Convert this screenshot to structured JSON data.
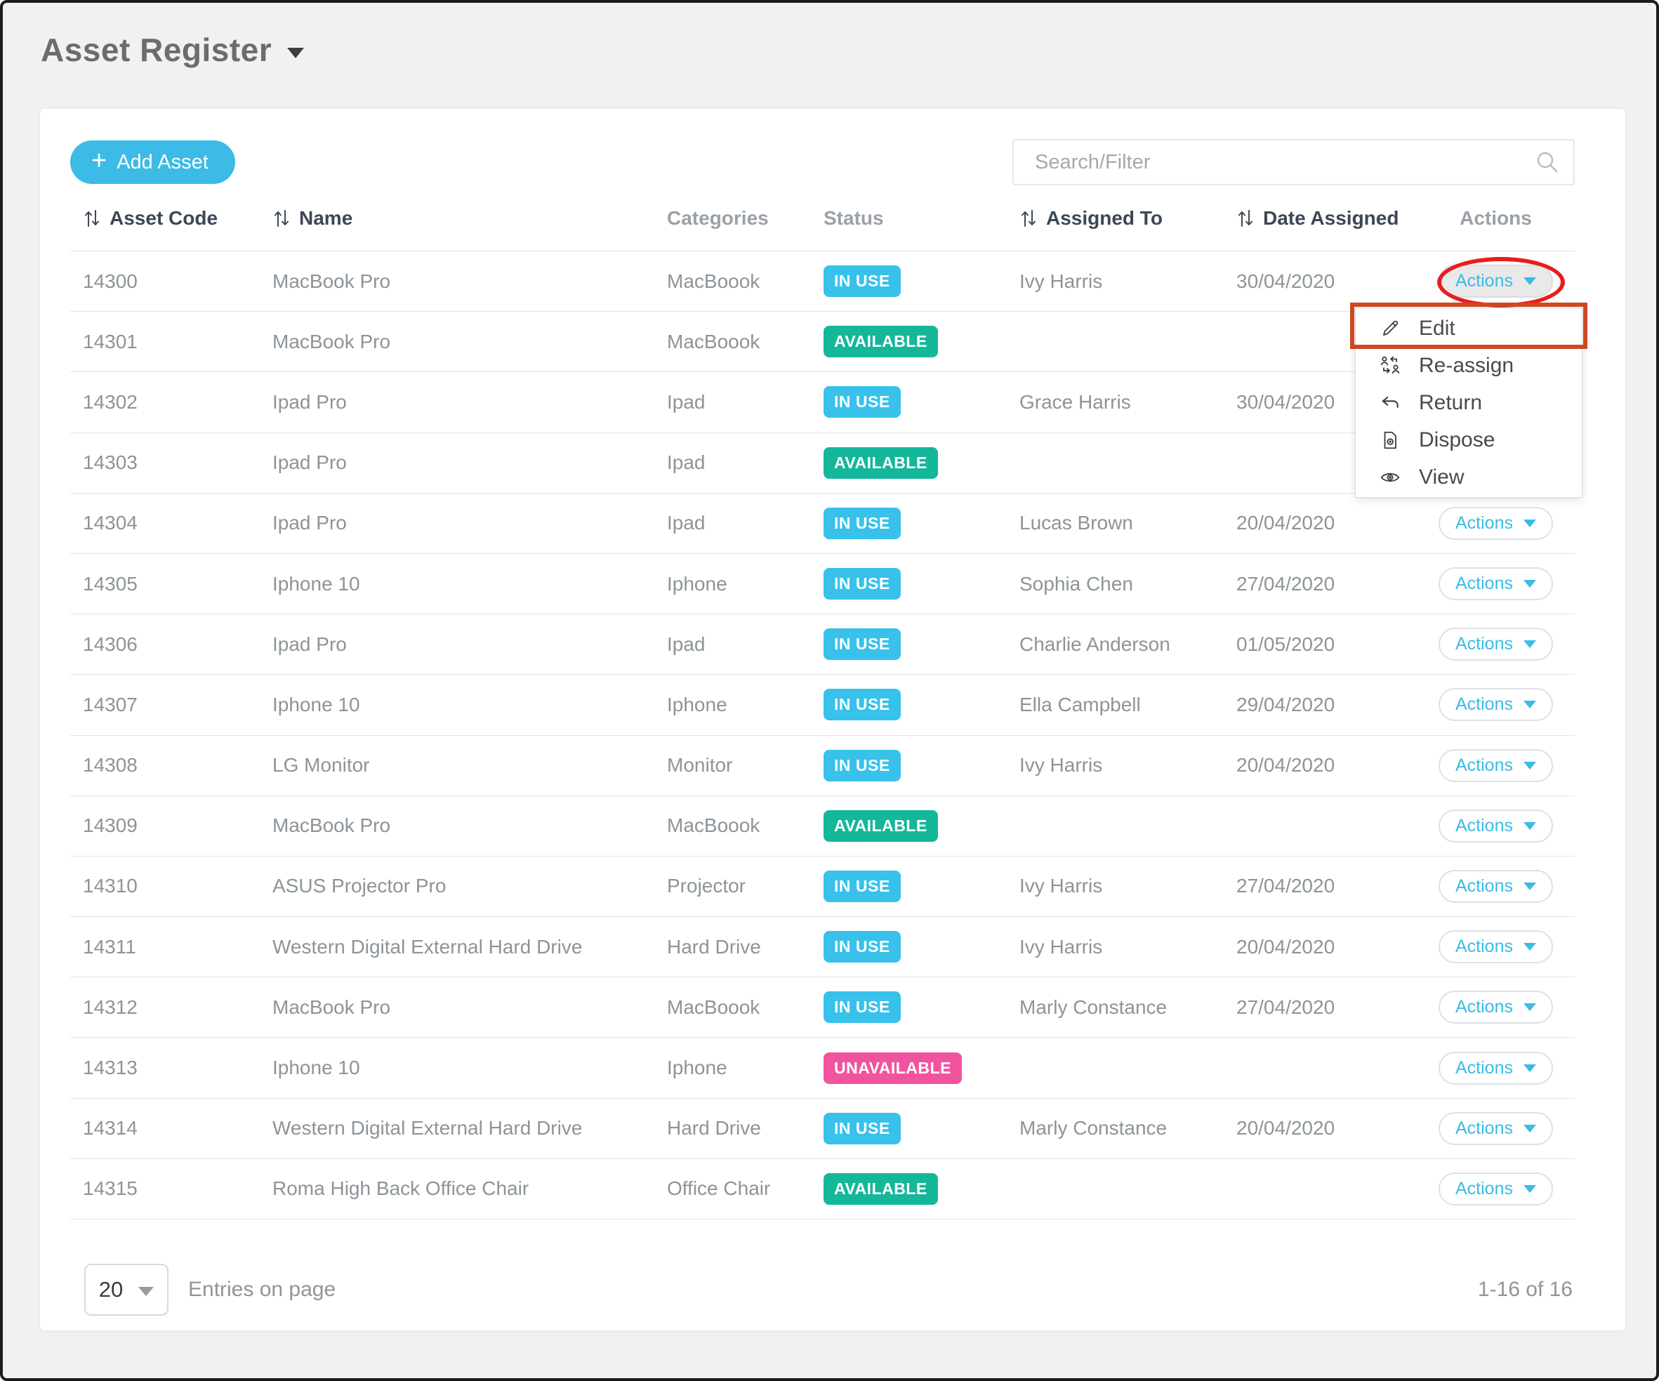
{
  "page": {
    "title": "Asset Register"
  },
  "toolbar": {
    "add_asset_label": "Add Asset",
    "search_placeholder": "Search/Filter"
  },
  "table": {
    "columns": [
      {
        "label": "Asset Code",
        "sortable": true
      },
      {
        "label": "Name",
        "sortable": true
      },
      {
        "label": "Categories",
        "sortable": false
      },
      {
        "label": "Status",
        "sortable": false
      },
      {
        "label": "Assigned To",
        "sortable": true
      },
      {
        "label": "Date Assigned",
        "sortable": true
      },
      {
        "label": "Actions",
        "sortable": false
      }
    ],
    "actions_button_label": "Actions",
    "rows": [
      {
        "code": "14300",
        "name": "MacBook Pro",
        "category": "MacBoook",
        "status": "IN USE",
        "status_class": "in-use",
        "assigned_to": "Ivy Harris",
        "date_assigned": "30/04/2020",
        "actions_open": true
      },
      {
        "code": "14301",
        "name": "MacBook Pro",
        "category": "MacBoook",
        "status": "AVAILABLE",
        "status_class": "available",
        "assigned_to": "",
        "date_assigned": "",
        "actions_open": false
      },
      {
        "code": "14302",
        "name": "Ipad Pro",
        "category": "Ipad",
        "status": "IN USE",
        "status_class": "in-use",
        "assigned_to": "Grace Harris",
        "date_assigned": "30/04/2020",
        "actions_open": false
      },
      {
        "code": "14303",
        "name": "Ipad Pro",
        "category": "Ipad",
        "status": "AVAILABLE",
        "status_class": "available",
        "assigned_to": "",
        "date_assigned": "",
        "actions_open": false
      },
      {
        "code": "14304",
        "name": "Ipad Pro",
        "category": "Ipad",
        "status": "IN USE",
        "status_class": "in-use",
        "assigned_to": "Lucas Brown",
        "date_assigned": "20/04/2020",
        "actions_open": false
      },
      {
        "code": "14305",
        "name": "Iphone 10",
        "category": "Iphone",
        "status": "IN USE",
        "status_class": "in-use",
        "assigned_to": "Sophia Chen",
        "date_assigned": "27/04/2020",
        "actions_open": false
      },
      {
        "code": "14306",
        "name": "Ipad Pro",
        "category": "Ipad",
        "status": "IN USE",
        "status_class": "in-use",
        "assigned_to": "Charlie Anderson",
        "date_assigned": "01/05/2020",
        "actions_open": false
      },
      {
        "code": "14307",
        "name": "Iphone 10",
        "category": "Iphone",
        "status": "IN USE",
        "status_class": "in-use",
        "assigned_to": "Ella Campbell",
        "date_assigned": "29/04/2020",
        "actions_open": false
      },
      {
        "code": "14308",
        "name": "LG Monitor",
        "category": "Monitor",
        "status": "IN USE",
        "status_class": "in-use",
        "assigned_to": "Ivy Harris",
        "date_assigned": "20/04/2020",
        "actions_open": false
      },
      {
        "code": "14309",
        "name": "MacBook Pro",
        "category": "MacBoook",
        "status": "AVAILABLE",
        "status_class": "available",
        "assigned_to": "",
        "date_assigned": "",
        "actions_open": false
      },
      {
        "code": "14310",
        "name": "ASUS Projector Pro",
        "category": "Projector",
        "status": "IN USE",
        "status_class": "in-use",
        "assigned_to": "Ivy Harris",
        "date_assigned": "27/04/2020",
        "actions_open": false
      },
      {
        "code": "14311",
        "name": "Western Digital External Hard Drive",
        "category": "Hard Drive",
        "status": "IN USE",
        "status_class": "in-use",
        "assigned_to": "Ivy Harris",
        "date_assigned": "20/04/2020",
        "actions_open": false
      },
      {
        "code": "14312",
        "name": "MacBook Pro",
        "category": "MacBoook",
        "status": "IN USE",
        "status_class": "in-use",
        "assigned_to": "Marly Constance",
        "date_assigned": "27/04/2020",
        "actions_open": false
      },
      {
        "code": "14313",
        "name": "Iphone 10",
        "category": "Iphone",
        "status": "UNAVAILABLE",
        "status_class": "unavailable",
        "assigned_to": "",
        "date_assigned": "",
        "actions_open": false
      },
      {
        "code": "14314",
        "name": "Western Digital External Hard Drive",
        "category": "Hard Drive",
        "status": "IN USE",
        "status_class": "in-use",
        "assigned_to": "Marly Constance",
        "date_assigned": "20/04/2020",
        "actions_open": false
      },
      {
        "code": "14315",
        "name": "Roma High Back Office Chair",
        "category": "Office Chair",
        "status": "AVAILABLE",
        "status_class": "available",
        "assigned_to": "",
        "date_assigned": "",
        "actions_open": false
      }
    ]
  },
  "actions_menu": {
    "items": [
      {
        "label": "Edit",
        "icon": "pencil-icon"
      },
      {
        "label": "Re-assign",
        "icon": "reassign-icon"
      },
      {
        "label": "Return",
        "icon": "return-arrow-icon"
      },
      {
        "label": "Dispose",
        "icon": "dispose-file-icon"
      },
      {
        "label": "View",
        "icon": "eye-icon"
      }
    ],
    "highlighted_item": "Edit"
  },
  "pagination": {
    "per_page": "20",
    "entries_label": "Entries on page",
    "range_label": "1-16 of 16"
  },
  "colors": {
    "accent": "#3bbbe5",
    "status_in_use": "#38c1ea",
    "status_available": "#15b79a",
    "status_unavailable": "#f2539f",
    "annotation_red": "#e81d1d",
    "annotation_orange": "#ce4722"
  }
}
